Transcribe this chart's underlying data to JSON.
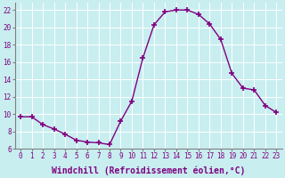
{
  "x": [
    0,
    1,
    2,
    3,
    4,
    5,
    6,
    7,
    8,
    9,
    10,
    11,
    12,
    13,
    14,
    15,
    16,
    17,
    18,
    19,
    20,
    21,
    22,
    23
  ],
  "y": [
    9.7,
    9.7,
    8.8,
    8.3,
    7.7,
    7.0,
    6.8,
    6.7,
    6.5,
    9.2,
    11.5,
    16.5,
    20.3,
    21.8,
    22.0,
    22.0,
    21.5,
    20.4,
    18.6,
    14.7,
    13.0,
    12.8,
    11.0,
    10.2
  ],
  "line_color": "#800080",
  "marker": "+",
  "marker_size": 5,
  "bg_color": "#c8eef0",
  "grid_color": "#ffffff",
  "xlabel": "Windchill (Refroidissement éolien,°C)",
  "ylim": [
    6,
    22.8
  ],
  "xlim": [
    -0.5,
    23.5
  ],
  "yticks": [
    6,
    8,
    10,
    12,
    14,
    16,
    18,
    20,
    22
  ],
  "xticks": [
    0,
    1,
    2,
    3,
    4,
    5,
    6,
    7,
    8,
    9,
    10,
    11,
    12,
    13,
    14,
    15,
    16,
    17,
    18,
    19,
    20,
    21,
    22,
    23
  ],
  "tick_fontsize": 5.5,
  "label_fontsize": 7.0,
  "line_width": 1.0,
  "spine_color": "#808080",
  "marker_color": "#800080"
}
